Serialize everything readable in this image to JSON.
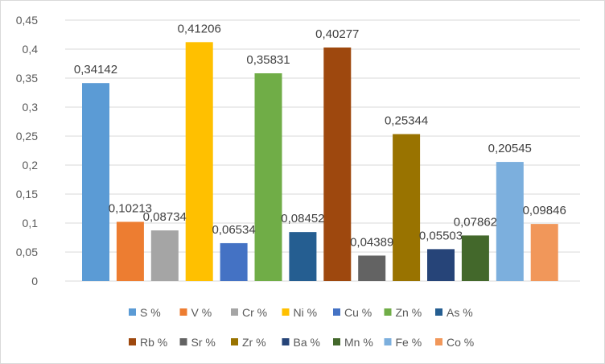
{
  "chart_data": {
    "type": "bar",
    "title": "",
    "xlabel": "",
    "ylabel": "",
    "ylim": [
      0,
      0.45
    ],
    "yticks": [
      "0",
      "0,05",
      "0,1",
      "0,15",
      "0,2",
      "0,25",
      "0,3",
      "0,35",
      "0,4",
      "0,45"
    ],
    "ytick_values": [
      0,
      0.05,
      0.1,
      0.15,
      0.2,
      0.25,
      0.3,
      0.35,
      0.4,
      0.45
    ],
    "grid": true,
    "legend_position": "bottom",
    "series": [
      {
        "name": "S %",
        "value": 0.34142,
        "label": "0,34142",
        "color": "#5b9bd5"
      },
      {
        "name": "V %",
        "value": 0.10213,
        "label": "0,10213",
        "color": "#ed7d31"
      },
      {
        "name": "Cr %",
        "value": 0.08734,
        "label": "0,08734",
        "color": "#a5a5a5"
      },
      {
        "name": "Ni %",
        "value": 0.41206,
        "label": "0,41206",
        "color": "#ffc000"
      },
      {
        "name": "Cu %",
        "value": 0.06534,
        "label": "0,06534",
        "color": "#4472c4"
      },
      {
        "name": "Zn %",
        "value": 0.35831,
        "label": "0,35831",
        "color": "#70ad47"
      },
      {
        "name": "As %",
        "value": 0.08452,
        "label": "0,08452",
        "color": "#255e91"
      },
      {
        "name": "Rb %",
        "value": 0.40277,
        "label": "0,40277",
        "color": "#9e480e"
      },
      {
        "name": "Sr %",
        "value": 0.04389,
        "label": "0,04389",
        "color": "#636363"
      },
      {
        "name": "Zr %",
        "value": 0.25344,
        "label": "0,25344",
        "color": "#997300"
      },
      {
        "name": "Ba %",
        "value": 0.05503,
        "label": "0,05503",
        "color": "#264478"
      },
      {
        "name": "Mn %",
        "value": 0.07862,
        "label": "0,07862",
        "color": "#43682b"
      },
      {
        "name": "Fe %",
        "value": 0.20545,
        "label": "0,20545",
        "color": "#7cafdd"
      },
      {
        "name": "Co %",
        "value": 0.09846,
        "label": "0,09846",
        "color": "#f1975a"
      }
    ]
  }
}
